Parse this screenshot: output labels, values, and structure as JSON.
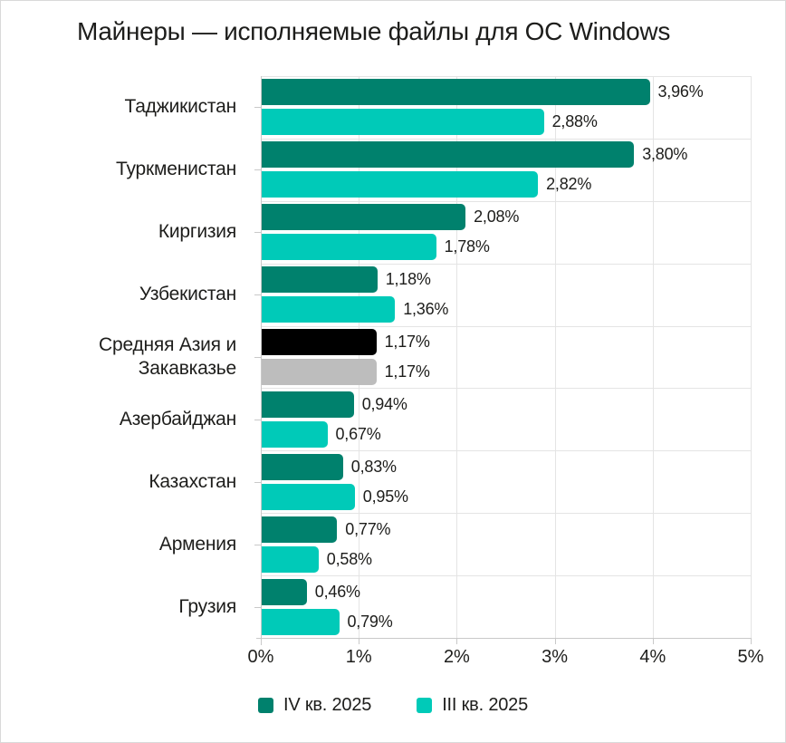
{
  "page": {
    "background": "#ffffff",
    "border_color": "#d9d9d9"
  },
  "colors": {
    "gridline": "#e4e4e4",
    "axis": "#c9c9c9",
    "text": "#1d1d1b"
  },
  "chart_data": {
    "type": "bar",
    "orientation": "horizontal",
    "title": "Майнеры — исполняемые файлы для ОС Windows",
    "categories": [
      "Таджикистан",
      "Туркменистан",
      "Киргизия",
      "Узбекистан",
      "Средняя Азия и Закавказье",
      "Азербайджан",
      "Казахстан",
      "Армения",
      "Грузия"
    ],
    "series": [
      {
        "name": "IV кв. 2025",
        "color": "#00816D",
        "values": [
          3.96,
          3.8,
          2.08,
          1.18,
          1.17,
          0.94,
          0.83,
          0.77,
          0.46
        ],
        "display_labels": [
          "3,96%",
          "3,80%",
          "2,08%",
          "1,18%",
          "1,17%",
          "0,94%",
          "0,83%",
          "0,77%",
          "0,46%"
        ]
      },
      {
        "name": "III кв. 2025",
        "color": "#00CAB8",
        "values": [
          2.88,
          2.82,
          1.78,
          1.36,
          1.17,
          0.67,
          0.95,
          0.58,
          0.79
        ],
        "display_labels": [
          "2,88%",
          "2,82%",
          "1,78%",
          "1,36%",
          "1,17%",
          "0,67%",
          "0,95%",
          "0,58%",
          "0,79%"
        ]
      }
    ],
    "category_color_overrides": {
      "Средняя Азия и Закавказье": [
        "#000000",
        "#BDBDBD"
      ]
    },
    "xlim": [
      0,
      5
    ],
    "x_ticks": [
      {
        "value": 0,
        "label": "0%"
      },
      {
        "value": 1,
        "label": "1%"
      },
      {
        "value": 2,
        "label": "2%"
      },
      {
        "value": 3,
        "label": "3%"
      },
      {
        "value": 4,
        "label": "4%"
      },
      {
        "value": 5,
        "label": "5%"
      }
    ],
    "grid": true,
    "legend_position": "bottom",
    "value_label_format": "comma-decimal percent"
  }
}
